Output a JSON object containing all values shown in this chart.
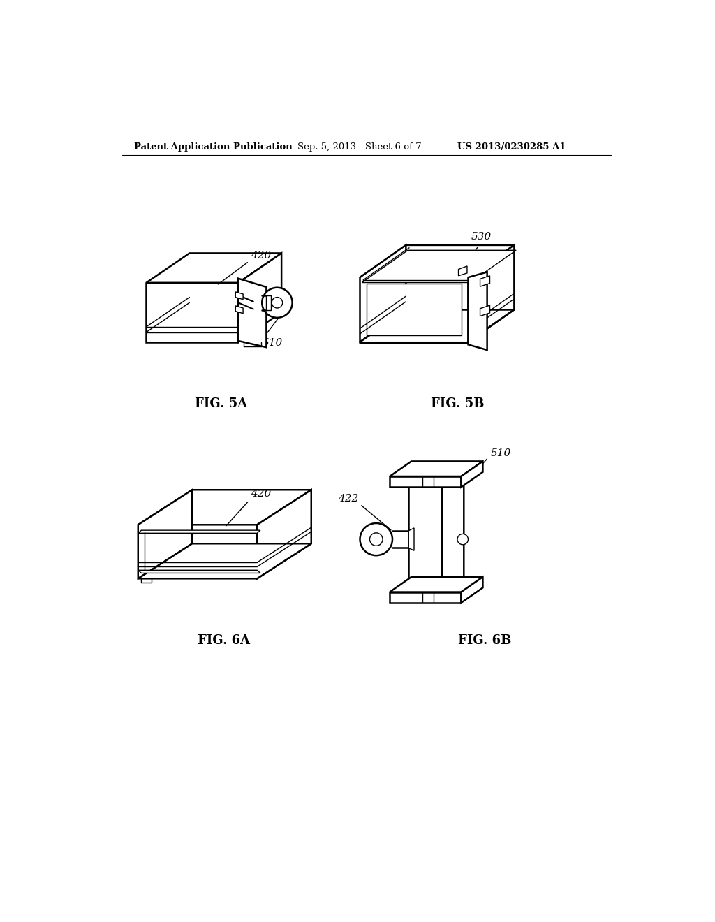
{
  "bg_color": "#ffffff",
  "line_color": "#000000",
  "text_color": "#000000",
  "header_left": "Patent Application Publication",
  "header_mid": "Sep. 5, 2013   Sheet 6 of 7",
  "header_right": "US 2013/0230285 A1",
  "fig5a_label": "FIG. 5A",
  "fig5b_label": "FIG. 5B",
  "fig6a_label": "FIG. 6A",
  "fig6b_label": "FIG. 6B",
  "ref_420_5a": "420",
  "ref_510_5a": "510",
  "ref_530_5b": "530",
  "ref_420_6a": "420",
  "ref_422_6b": "422",
  "ref_510_6b": "510",
  "lw_main": 1.8,
  "lw_thin": 1.0,
  "lw_thick": 2.2
}
